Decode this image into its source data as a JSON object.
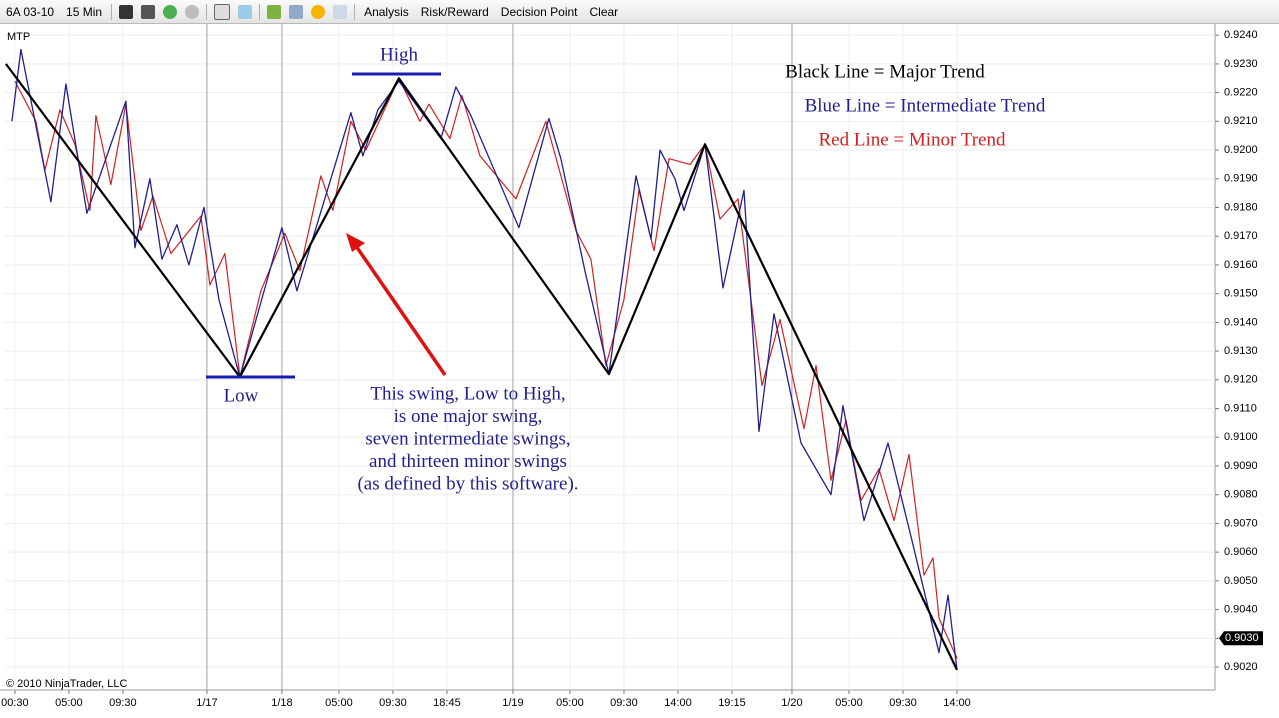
{
  "toolbar": {
    "instrument": "6A 03-10",
    "interval": "15 Min",
    "menu": [
      "Analysis",
      "Risk/Reward",
      "Decision Point",
      "Clear"
    ]
  },
  "chart_data": {
    "type": "line",
    "panel_label": "MTP",
    "copyright": "© 2010 NinjaTrader, LLC",
    "annotations": {
      "high": "High",
      "low": "Low",
      "callout": [
        "This swing, Low to High,",
        "is one major swing,",
        "seven intermediate swings,",
        "and thirteen minor swings",
        "(as defined by this software)."
      ]
    },
    "last_price": {
      "value": 0.903,
      "label": "0.9030"
    },
    "xlim": [
      -3.3,
      400
    ],
    "xticks": [
      {
        "value": 0,
        "label": "00:30"
      },
      {
        "value": 18,
        "label": "05:00"
      },
      {
        "value": 36,
        "label": "09:30"
      },
      {
        "value": 64,
        "label": "1/17"
      },
      {
        "value": 89,
        "label": "1/18"
      },
      {
        "value": 108,
        "label": "05:00"
      },
      {
        "value": 126,
        "label": "09:30"
      },
      {
        "value": 144,
        "label": "18:45"
      },
      {
        "value": 166,
        "label": "1/19"
      },
      {
        "value": 185,
        "label": "05:00"
      },
      {
        "value": 203,
        "label": "09:30"
      },
      {
        "value": 221,
        "label": "14:00"
      },
      {
        "value": 239,
        "label": "19:15"
      },
      {
        "value": 259,
        "label": "1/20"
      },
      {
        "value": 278,
        "label": "05:00"
      },
      {
        "value": 296,
        "label": "09:30"
      },
      {
        "value": 314,
        "label": "14:00"
      }
    ],
    "ylim": [
      0.9012,
      0.92425
    ],
    "yticks": [
      {
        "value": 0.902,
        "label": "0.9020"
      },
      {
        "value": 0.903,
        "label": "0.9030"
      },
      {
        "value": 0.904,
        "label": "0.9040"
      },
      {
        "value": 0.905,
        "label": "0.9050"
      },
      {
        "value": 0.906,
        "label": "0.9060"
      },
      {
        "value": 0.907,
        "label": "0.9070"
      },
      {
        "value": 0.908,
        "label": "0.9080"
      },
      {
        "value": 0.909,
        "label": "0.9090"
      },
      {
        "value": 0.91,
        "label": "0.9100"
      },
      {
        "value": 0.911,
        "label": "0.9110"
      },
      {
        "value": 0.912,
        "label": "0.9120"
      },
      {
        "value": 0.913,
        "label": "0.9130"
      },
      {
        "value": 0.914,
        "label": "0.9140"
      },
      {
        "value": 0.915,
        "label": "0.9150"
      },
      {
        "value": 0.916,
        "label": "0.9160"
      },
      {
        "value": 0.917,
        "label": "0.9170"
      },
      {
        "value": 0.918,
        "label": "0.9180"
      },
      {
        "value": 0.919,
        "label": "0.9190"
      },
      {
        "value": 0.92,
        "label": "0.9200"
      },
      {
        "value": 0.921,
        "label": "0.9210"
      },
      {
        "value": 0.922,
        "label": "0.9220"
      },
      {
        "value": 0.923,
        "label": "0.9230"
      },
      {
        "value": 0.924,
        "label": "0.9240"
      }
    ],
    "grid": true,
    "series": [
      {
        "name": "Black Line = Major Trend",
        "color": "#000000",
        "width": 2.2,
        "x": [
          -3,
          75,
          128,
          198,
          230,
          314
        ],
        "values": [
          0.923,
          0.9121,
          0.9225,
          0.9122,
          0.9202,
          0.9019
        ]
      },
      {
        "name": "Blue Line = Intermediate Trend",
        "color": "#1f1f8f",
        "width": 1.3,
        "x": [
          -1,
          2,
          12,
          17,
          24,
          37,
          40,
          45,
          49,
          54,
          58,
          63,
          68,
          75,
          89,
          94,
          112,
          116,
          121,
          128,
          142,
          147,
          152,
          168,
          178,
          182,
          190,
          198,
          207,
          212,
          215,
          220,
          223,
          230,
          236,
          243,
          248,
          253,
          262,
          272,
          276,
          283,
          291,
          299,
          308,
          311,
          314
        ],
        "values": [
          0.921,
          0.9235,
          0.9182,
          0.9223,
          0.9178,
          0.9217,
          0.9166,
          0.919,
          0.9162,
          0.9174,
          0.916,
          0.918,
          0.9148,
          0.9121,
          0.9173,
          0.9151,
          0.9213,
          0.9198,
          0.9214,
          0.9224,
          0.9204,
          0.9222,
          0.9212,
          0.9173,
          0.9211,
          0.9197,
          0.9158,
          0.9122,
          0.9191,
          0.9169,
          0.92,
          0.919,
          0.9179,
          0.9202,
          0.9152,
          0.9186,
          0.9102,
          0.9143,
          0.9098,
          0.908,
          0.9111,
          0.9071,
          0.9098,
          0.9064,
          0.9025,
          0.9045,
          0.9019
        ]
      },
      {
        "name": "Red Line = Minor Trend",
        "color": "#d42020",
        "width": 1.2,
        "x": [
          0,
          7,
          10,
          15,
          20,
          25,
          27,
          32,
          37,
          42,
          46,
          52,
          62,
          65,
          70,
          75,
          82,
          90,
          95,
          102,
          106,
          112,
          117,
          128,
          135,
          138,
          145,
          149,
          155,
          167,
          177,
          187,
          192,
          197,
          203,
          208,
          213,
          218,
          225,
          230,
          235,
          241,
          249,
          255,
          263,
          267,
          272,
          277,
          282,
          288,
          293,
          298,
          303,
          306,
          308,
          314
        ],
        "values": [
          0.9224,
          0.921,
          0.9193,
          0.9214,
          0.9202,
          0.9179,
          0.9212,
          0.9188,
          0.9216,
          0.9172,
          0.9184,
          0.9164,
          0.9177,
          0.9153,
          0.9164,
          0.9121,
          0.9151,
          0.9171,
          0.9158,
          0.9191,
          0.9179,
          0.921,
          0.92,
          0.9225,
          0.921,
          0.9216,
          0.9204,
          0.9219,
          0.9198,
          0.9183,
          0.921,
          0.9172,
          0.9162,
          0.9125,
          0.9148,
          0.9186,
          0.9165,
          0.9197,
          0.9195,
          0.9202,
          0.9176,
          0.9183,
          0.9118,
          0.9141,
          0.9103,
          0.9125,
          0.9085,
          0.9106,
          0.9078,
          0.9089,
          0.9071,
          0.9094,
          0.9052,
          0.9058,
          0.9037,
          0.9023
        ]
      }
    ]
  }
}
